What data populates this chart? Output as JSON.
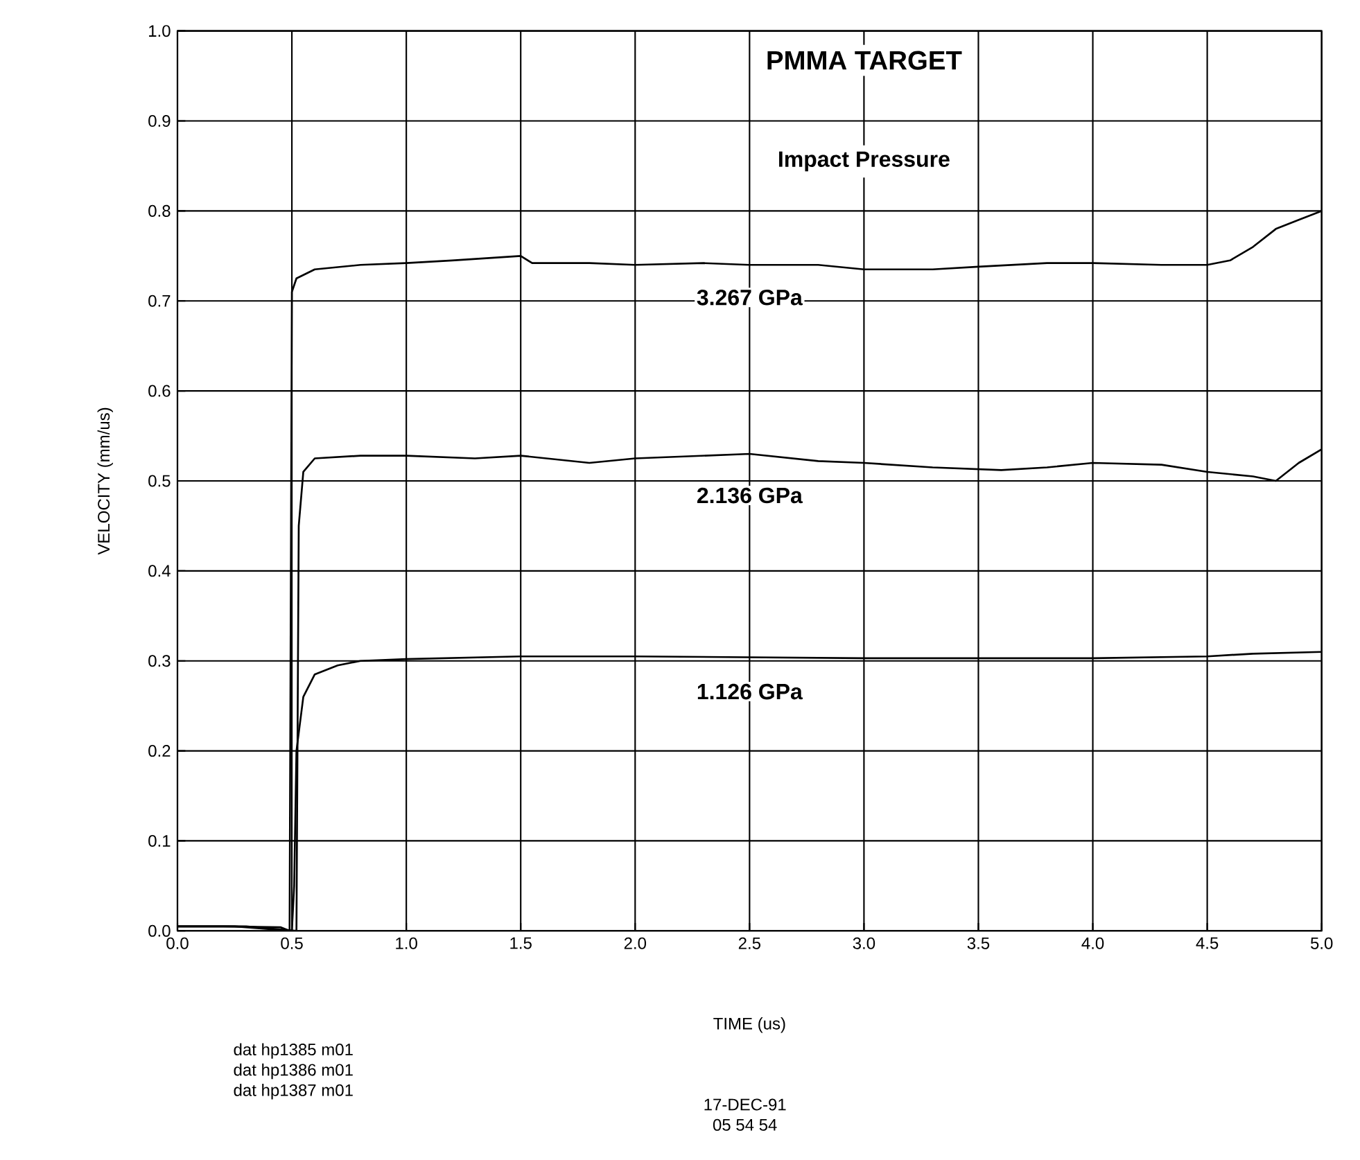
{
  "chart_data": {
    "type": "line",
    "title": "PMMA TARGET",
    "subtitle": "Impact Pressure",
    "xlabel": "TIME (us)",
    "ylabel": "VELOCITY (mm/us)",
    "xlim": [
      0,
      5
    ],
    "ylim": [
      0,
      1
    ],
    "xticks": [
      {
        "value": 0,
        "label": "0.0"
      },
      0.5,
      {
        "value": 1,
        "label": "1.0"
      },
      1.5,
      {
        "value": 2,
        "label": "2.0"
      },
      2.5,
      {
        "value": 3,
        "label": "3.0"
      },
      3.5,
      {
        "value": 4,
        "label": "4.0"
      },
      4.5,
      {
        "value": 5,
        "label": "5.0"
      }
    ],
    "yticks": [
      {
        "value": 0,
        "label": "0.0"
      },
      0.1,
      0.2,
      0.3,
      0.4,
      0.5,
      0.6,
      0.7,
      0.8,
      0.9,
      {
        "value": 1,
        "label": "1.0"
      }
    ],
    "grid": true,
    "series": [
      {
        "name": "3.267 GPa",
        "color": "#000000",
        "x": [
          0,
          0.2,
          0.45,
          0.49,
          0.5,
          0.52,
          0.6,
          0.8,
          1.0,
          1.2,
          1.5,
          1.55,
          1.8,
          2.0,
          2.3,
          2.5,
          2.8,
          3.0,
          3.3,
          3.5,
          3.8,
          4.0,
          4.3,
          4.5,
          4.6,
          4.7,
          4.8,
          4.9,
          5.0
        ],
        "values": [
          0.005,
          0.005,
          0.004,
          0.0,
          0.71,
          0.725,
          0.735,
          0.74,
          0.742,
          0.745,
          0.75,
          0.742,
          0.742,
          0.74,
          0.742,
          0.74,
          0.74,
          0.735,
          0.735,
          0.738,
          0.742,
          0.742,
          0.74,
          0.74,
          0.745,
          0.76,
          0.78,
          0.79,
          0.8
        ]
      },
      {
        "name": "2.136 GPa",
        "color": "#000000",
        "x": [
          0,
          0.3,
          0.52,
          0.53,
          0.55,
          0.6,
          0.8,
          1.0,
          1.3,
          1.5,
          1.8,
          2.0,
          2.5,
          2.8,
          3.0,
          3.3,
          3.6,
          3.8,
          4.0,
          4.3,
          4.5,
          4.7,
          4.8,
          4.9,
          5.0
        ],
        "values": [
          0.005,
          0.005,
          0.0,
          0.45,
          0.51,
          0.525,
          0.528,
          0.528,
          0.525,
          0.528,
          0.52,
          0.525,
          0.53,
          0.522,
          0.52,
          0.515,
          0.512,
          0.515,
          0.52,
          0.518,
          0.51,
          0.505,
          0.5,
          0.52,
          0.535
        ]
      },
      {
        "name": "1.126 GPa",
        "color": "#000000",
        "x": [
          0,
          0.25,
          0.5,
          0.51,
          0.52,
          0.55,
          0.6,
          0.7,
          0.8,
          1.0,
          1.5,
          2.0,
          3.0,
          3.5,
          4.0,
          4.5,
          4.7,
          5.0
        ],
        "values": [
          0.005,
          0.005,
          0.0,
          0.05,
          0.2,
          0.26,
          0.285,
          0.295,
          0.3,
          0.302,
          0.305,
          0.305,
          0.303,
          0.303,
          0.303,
          0.305,
          0.308,
          0.31
        ]
      }
    ],
    "annotations": [
      "dat hp1385 m01",
      "dat hp1386 m01",
      "dat hp1387 m01",
      "17-DEC-91",
      "05 54 54"
    ]
  }
}
